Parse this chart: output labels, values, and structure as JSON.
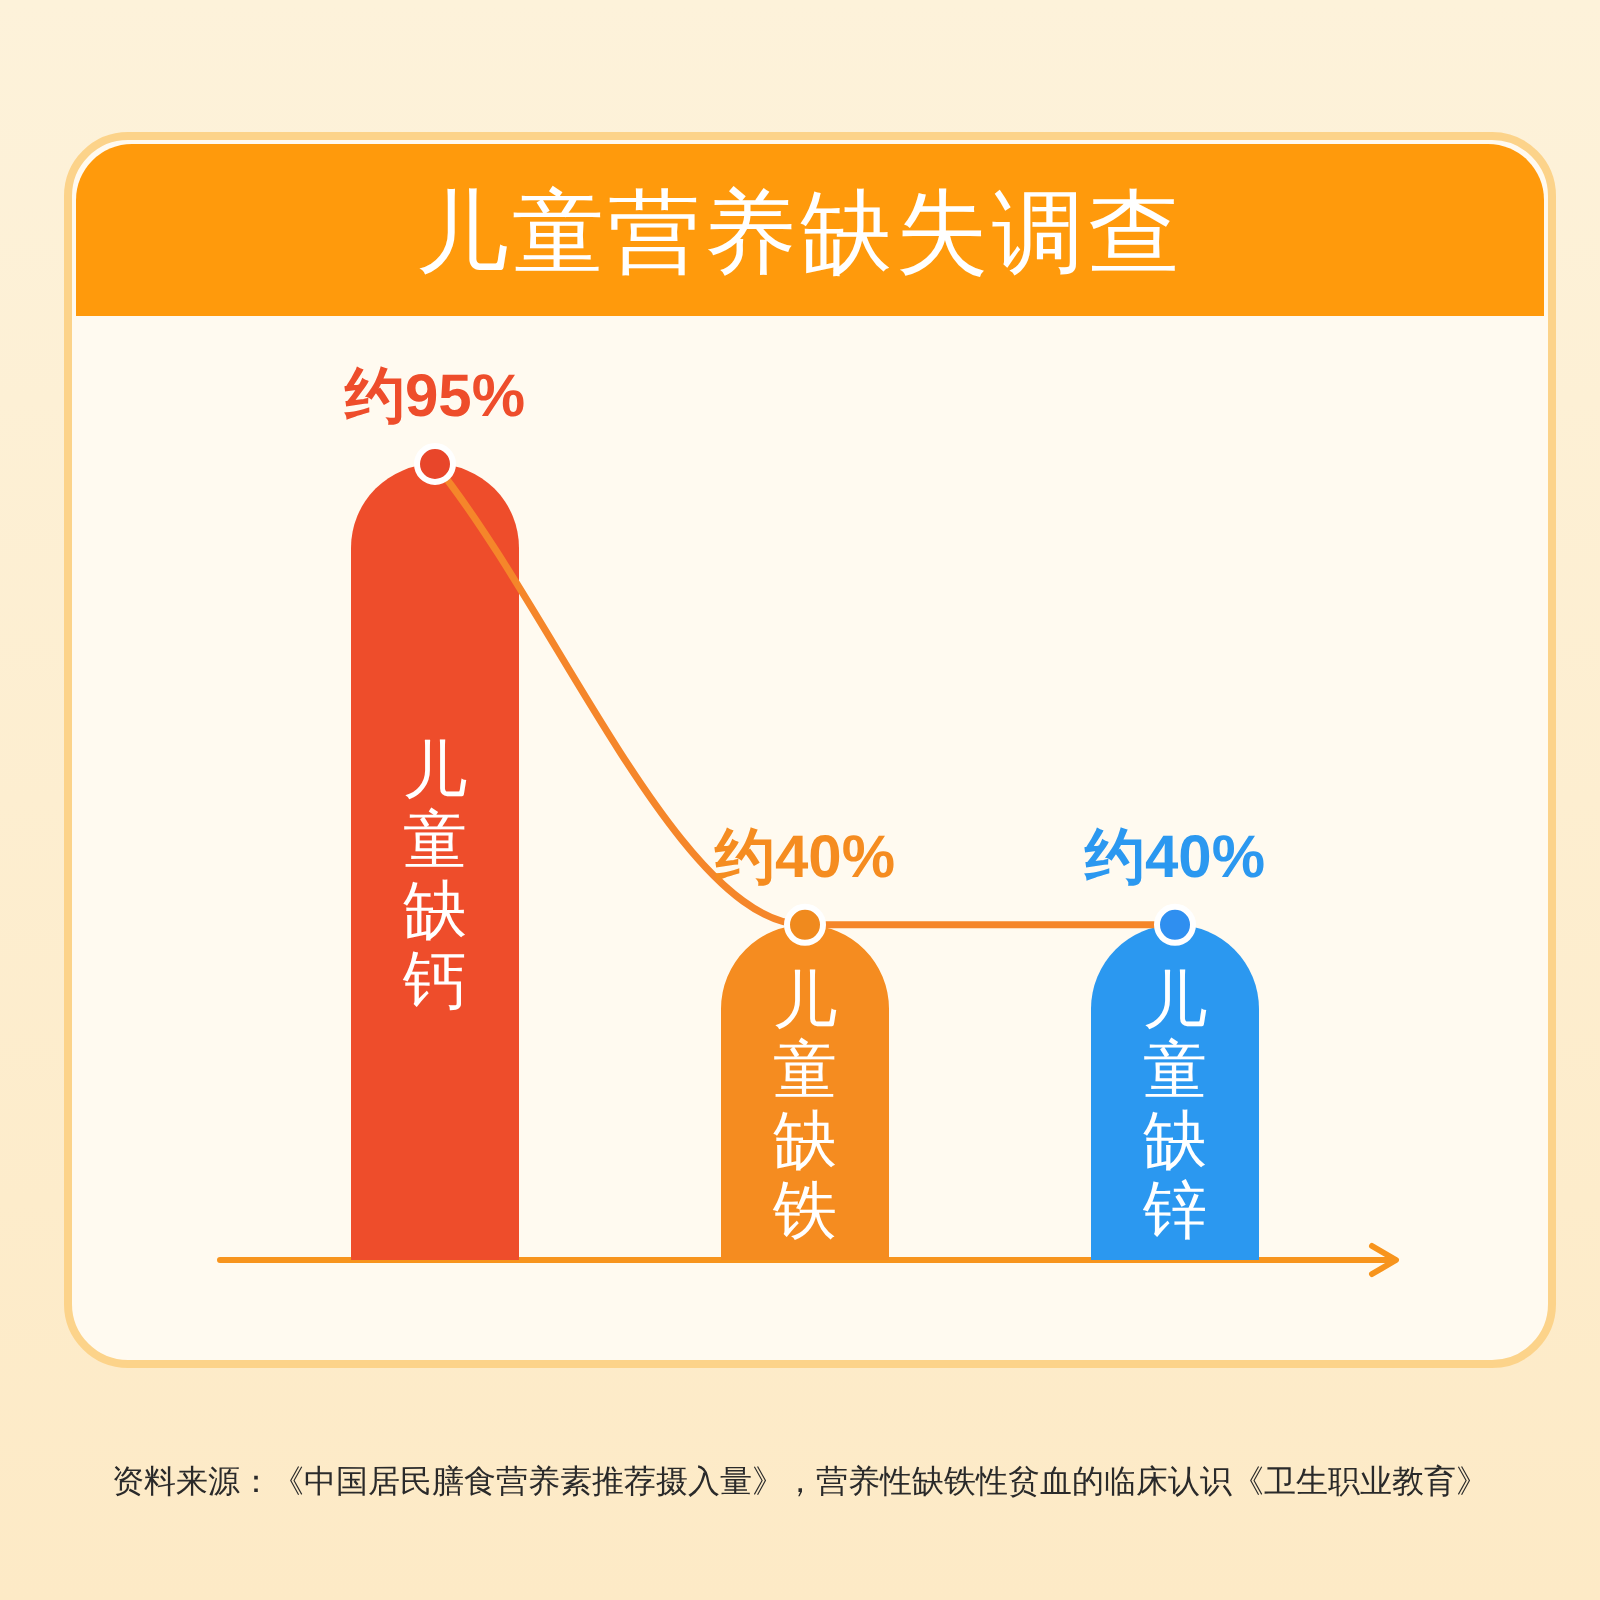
{
  "chart_data": {
    "type": "bar",
    "title": "儿童营养缺失调查",
    "categories": [
      "儿童缺钙",
      "儿童缺铁",
      "儿童缺锌"
    ],
    "tick_labels": "x",
    "marker": "circle",
    "series": [
      {
        "colors": [
          "#ee4d2b",
          "#f58c20",
          "#2b98f0"
        ],
        "values": [
          95,
          40,
          40
        ],
        "value_labels": [
          "约95%",
          "约40%",
          "约40%"
        ]
      },
      {
        "type": "line",
        "color": "#f5862a",
        "colors": [
          "#e8462a",
          "#f08a1e",
          "#2f8ff0"
        ],
        "values": [
          95,
          40,
          40
        ]
      }
    ],
    "annotations": [
      "资料来源：《中国居民膳食营养素推荐摄入量》，营养性缺铁性贫血的临床认识《卫生职业教育》"
    ]
  }
}
